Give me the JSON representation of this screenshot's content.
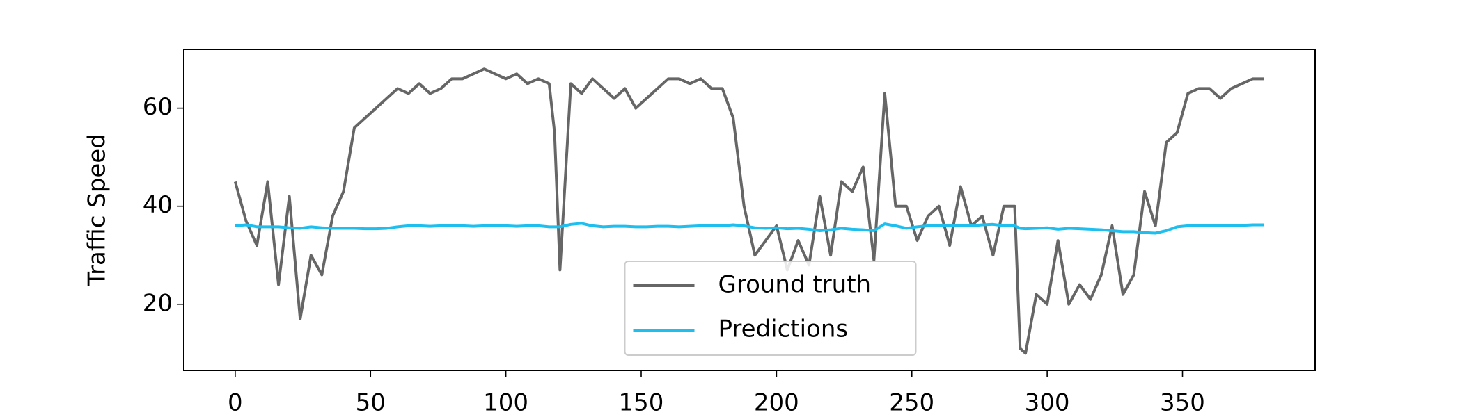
{
  "chart_data": {
    "type": "line",
    "ylabel": "Traffic Speed",
    "x": [
      0,
      4,
      8,
      12,
      16,
      20,
      24,
      28,
      32,
      36,
      40,
      44,
      48,
      52,
      56,
      60,
      64,
      68,
      72,
      76,
      80,
      84,
      88,
      92,
      96,
      100,
      104,
      108,
      112,
      116,
      118,
      120,
      124,
      128,
      132,
      136,
      140,
      144,
      148,
      152,
      156,
      160,
      164,
      168,
      172,
      176,
      180,
      184,
      188,
      192,
      196,
      200,
      204,
      208,
      212,
      216,
      220,
      224,
      228,
      232,
      236,
      240,
      244,
      248,
      252,
      256,
      260,
      264,
      268,
      272,
      276,
      280,
      284,
      288,
      290,
      292,
      296,
      300,
      304,
      308,
      312,
      316,
      320,
      324,
      328,
      332,
      336,
      340,
      344,
      348,
      352,
      356,
      360,
      364,
      368,
      372,
      376,
      380
    ],
    "series": [
      {
        "name": "Ground truth",
        "color": "#666666",
        "values": [
          45,
          37,
          32,
          45,
          24,
          42,
          17,
          30,
          26,
          38,
          43,
          56,
          58,
          60,
          62,
          64,
          63,
          65,
          63,
          64,
          66,
          66,
          67,
          68,
          67,
          66,
          67,
          65,
          66,
          65,
          55,
          27,
          65,
          63,
          66,
          64,
          62,
          64,
          60,
          62,
          64,
          66,
          66,
          65,
          66,
          64,
          64,
          58,
          40,
          30,
          33,
          36,
          27,
          33,
          28,
          42,
          30,
          45,
          43,
          48,
          29,
          63,
          40,
          40,
          33,
          38,
          40,
          32,
          44,
          36,
          38,
          30,
          40,
          40,
          11,
          10,
          22,
          20,
          33,
          20,
          24,
          21,
          26,
          36,
          22,
          26,
          43,
          36,
          53,
          55,
          63,
          64,
          64,
          62,
          64,
          65,
          66,
          66
        ]
      },
      {
        "name": "Predictions",
        "color": "#1ebfef",
        "values": [
          36,
          36.2,
          35.8,
          35.8,
          35.8,
          35.6,
          35.5,
          35.8,
          35.6,
          35.5,
          35.5,
          35.5,
          35.4,
          35.4,
          35.5,
          35.8,
          36,
          36,
          35.9,
          36,
          36,
          36,
          35.9,
          36,
          36,
          36,
          35.9,
          36,
          36,
          35.8,
          35.8,
          35.8,
          36.3,
          36.5,
          36,
          35.8,
          35.9,
          35.9,
          35.8,
          35.8,
          35.9,
          35.9,
          35.8,
          35.9,
          36,
          36,
          36,
          36.2,
          36,
          35.6,
          35.5,
          35.6,
          35.4,
          35.5,
          35.3,
          35,
          35.2,
          35.5,
          35.3,
          35.2,
          35,
          36.4,
          36,
          35.5,
          35.8,
          36,
          36,
          36,
          36,
          36,
          36.2,
          36.3,
          36,
          36,
          35.5,
          35.4,
          35.5,
          35.6,
          35.3,
          35.5,
          35.4,
          35.3,
          35.2,
          35,
          34.8,
          34.8,
          34.6,
          34.5,
          35,
          35.8,
          36,
          36,
          36,
          36,
          36.1,
          36.1,
          36.2,
          36.2
        ]
      }
    ],
    "xlim": [
      -19,
      399
    ],
    "ylim": [
      6.5,
      72
    ],
    "xticks": [
      0,
      50,
      100,
      150,
      200,
      250,
      300,
      350
    ],
    "yticks": [
      20,
      40,
      60
    ],
    "legend": "lower center"
  }
}
